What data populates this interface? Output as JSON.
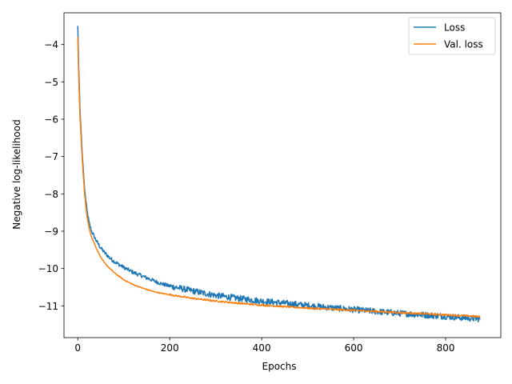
{
  "chart_data": {
    "type": "line",
    "title": "",
    "xlabel": "Epochs",
    "ylabel": "Negative log-likelihood",
    "xlim": [
      -30,
      920
    ],
    "ylim": [
      -11.85,
      -3.15
    ],
    "xticks": [
      0,
      200,
      400,
      600,
      800
    ],
    "yticks": [
      -11,
      -10,
      -9,
      -8,
      -7,
      -6,
      -5,
      -4
    ],
    "grid": false,
    "legend": "top-right",
    "series": [
      {
        "name": "Loss",
        "color": "#1f77b4",
        "x": [
          0,
          2,
          5,
          10,
          15,
          20,
          25,
          30,
          40,
          50,
          60,
          70,
          80,
          100,
          120,
          140,
          160,
          180,
          200,
          250,
          300,
          350,
          400,
          450,
          500,
          550,
          600,
          650,
          700,
          750,
          800,
          850,
          875
        ],
        "y": [
          -3.5,
          -4.6,
          -5.8,
          -7.0,
          -7.9,
          -8.45,
          -8.8,
          -9.0,
          -9.25,
          -9.45,
          -9.6,
          -9.72,
          -9.82,
          -9.97,
          -10.1,
          -10.2,
          -10.3,
          -10.4,
          -10.47,
          -10.6,
          -10.72,
          -10.8,
          -10.87,
          -10.93,
          -10.99,
          -11.05,
          -11.1,
          -11.15,
          -11.2,
          -11.24,
          -11.28,
          -11.33,
          -11.35
        ],
        "noise": 0.06
      },
      {
        "name": "Val. loss",
        "color": "#ff7f0e",
        "x": [
          0,
          2,
          5,
          10,
          15,
          20,
          25,
          30,
          40,
          50,
          60,
          70,
          80,
          100,
          120,
          140,
          160,
          180,
          200,
          250,
          300,
          350,
          400,
          450,
          500,
          550,
          600,
          650,
          700,
          750,
          800,
          850,
          875
        ],
        "y": [
          -3.8,
          -4.9,
          -6.0,
          -7.15,
          -8.05,
          -8.6,
          -8.95,
          -9.15,
          -9.45,
          -9.7,
          -9.88,
          -10.0,
          -10.12,
          -10.3,
          -10.43,
          -10.52,
          -10.6,
          -10.66,
          -10.7,
          -10.8,
          -10.87,
          -10.93,
          -10.98,
          -11.02,
          -11.06,
          -11.09,
          -11.12,
          -11.15,
          -11.18,
          -11.21,
          -11.24,
          -11.27,
          -11.29
        ],
        "noise": 0.015
      }
    ]
  }
}
